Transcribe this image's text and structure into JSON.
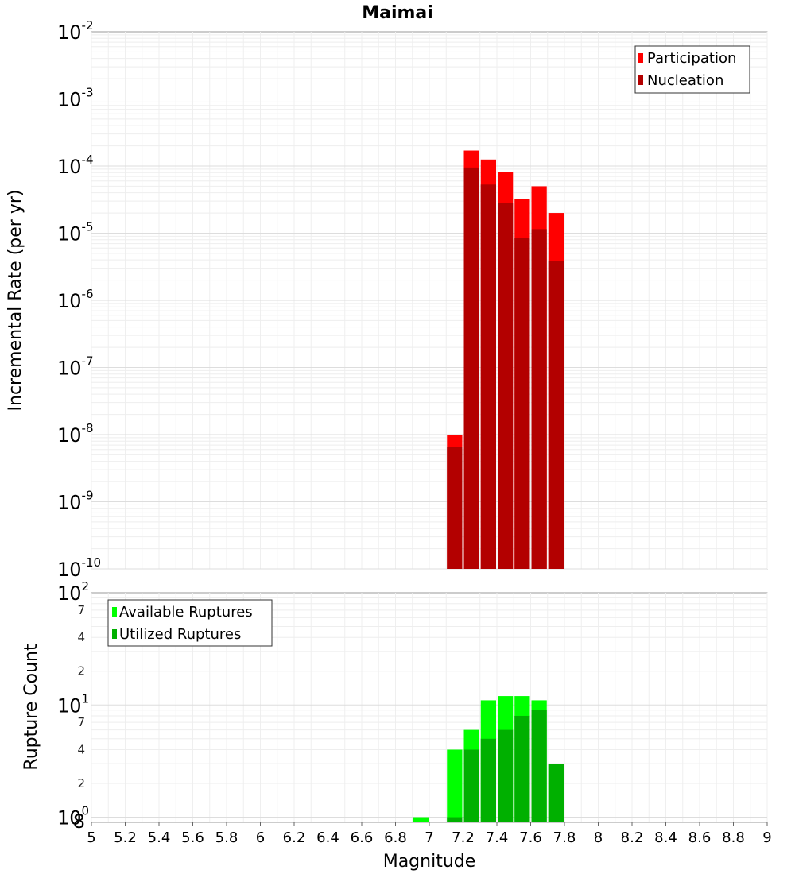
{
  "chart_data": [
    {
      "type": "bar",
      "title": "Maimai",
      "ylabel": "Incremental Rate (per yr)",
      "yscale": "log",
      "ylim": [
        1e-10,
        0.01
      ],
      "xlim": [
        5,
        9
      ],
      "bin_width": 0.1,
      "x": [
        7.15,
        7.25,
        7.35,
        7.45,
        7.55,
        7.65,
        7.75
      ],
      "series": [
        {
          "name": "Participation",
          "color": "#ff0000",
          "values": [
            1e-08,
            0.00017,
            0.000125,
            8.2e-05,
            3.2e-05,
            5e-05,
            2e-05
          ]
        },
        {
          "name": "Nucleation",
          "color": "#b30000",
          "values": [
            6.5e-09,
            9.5e-05,
            5.3e-05,
            2.8e-05,
            8.5e-06,
            1.15e-05,
            3.8e-06
          ]
        }
      ],
      "major_ticks": [
        {
          "base": "10",
          "exp": "-2"
        },
        {
          "base": "10",
          "exp": "-3"
        },
        {
          "base": "10",
          "exp": "-4"
        },
        {
          "base": "10",
          "exp": "-5"
        },
        {
          "base": "10",
          "exp": "-6"
        },
        {
          "base": "10",
          "exp": "-7"
        },
        {
          "base": "10",
          "exp": "-8"
        },
        {
          "base": "10",
          "exp": "-9"
        },
        {
          "base": "10",
          "exp": "-10"
        }
      ],
      "legend_position": "top-right",
      "grid": true
    },
    {
      "type": "bar",
      "xlabel": "Magnitude",
      "ylabel": "Rupture Count",
      "yscale": "log",
      "ylim": [
        0.9,
        100
      ],
      "xlim": [
        5,
        9
      ],
      "bin_width": 0.1,
      "series": [
        {
          "name": "Available Ruptures",
          "color": "#00ff00",
          "x": [
            6.95,
            7.15,
            7.25,
            7.35,
            7.45,
            7.55,
            7.65,
            7.75
          ],
          "values": [
            1,
            4,
            6,
            11,
            12,
            12,
            11,
            3
          ]
        },
        {
          "name": "Utilized Ruptures",
          "color": "#00b000",
          "x": [
            7.15,
            7.25,
            7.35,
            7.45,
            7.55,
            7.65,
            7.75
          ],
          "values": [
            1,
            4,
            5,
            6,
            8,
            9,
            3
          ]
        }
      ],
      "major_ticks": [
        {
          "base": "10",
          "exp": "2"
        },
        {
          "base": "10",
          "exp": "1"
        },
        {
          "base": "10",
          "exp": "0"
        }
      ],
      "minor_tick_labels": [
        "7",
        "4",
        "2",
        "7",
        "4",
        "2",
        "8"
      ],
      "x_ticks": [
        "5",
        "5.2",
        "5.4",
        "5.6",
        "5.8",
        "6",
        "6.2",
        "6.4",
        "6.6",
        "6.8",
        "7",
        "7.2",
        "7.4",
        "7.6",
        "7.8",
        "8",
        "8.2",
        "8.4",
        "8.6",
        "8.8",
        "9"
      ],
      "legend_position": "top-left",
      "grid": true
    }
  ]
}
